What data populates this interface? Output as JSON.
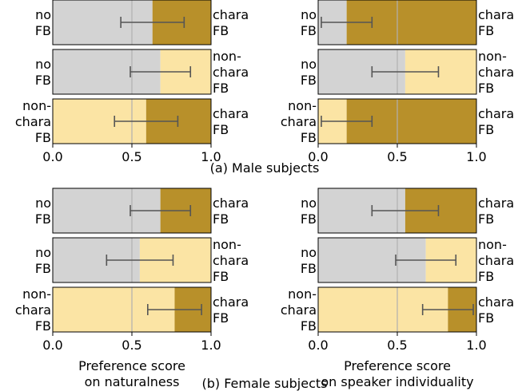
{
  "colors": {
    "gray": "#d3d3d3",
    "light": "#fbe4a4",
    "dark": "#b8902a",
    "midline": "#b0b0b0",
    "errorbar": "#555555"
  },
  "captions": {
    "male": "(a) Male subjects",
    "female": "(b) Female subjects"
  },
  "chart_data": [
    {
      "type": "bar",
      "group": "(a) Male subjects",
      "xlabel": [],
      "xlim": [
        0,
        1
      ],
      "ticks": [
        "0.0",
        "0.5",
        "1.0"
      ],
      "rows": [
        {
          "left": [
            "no",
            "FB"
          ],
          "right": [
            "chara",
            "FB"
          ],
          "left_color": "gray",
          "right_color": "dark",
          "value": 0.63,
          "err": [
            0.43,
            0.83
          ]
        },
        {
          "left": [
            "no",
            "FB"
          ],
          "right": [
            "non-",
            "chara",
            "FB"
          ],
          "left_color": "gray",
          "right_color": "light",
          "value": 0.68,
          "err": [
            0.49,
            0.87
          ]
        },
        {
          "left": [
            "non-",
            "chara",
            "FB"
          ],
          "right": [
            "chara",
            "FB"
          ],
          "left_color": "light",
          "right_color": "dark",
          "value": 0.59,
          "err": [
            0.39,
            0.79
          ]
        }
      ]
    },
    {
      "type": "bar",
      "group": "(a) Male subjects",
      "xlabel": [],
      "xlim": [
        0,
        1
      ],
      "ticks": [
        "0.0",
        "0.5",
        "1.0"
      ],
      "rows": [
        {
          "left": [
            "no",
            "FB"
          ],
          "right": [
            "chara",
            "FB"
          ],
          "left_color": "gray",
          "right_color": "dark",
          "value": 0.18,
          "err": [
            0.02,
            0.34
          ]
        },
        {
          "left": [
            "no",
            "FB"
          ],
          "right": [
            "non-",
            "chara",
            "FB"
          ],
          "left_color": "gray",
          "right_color": "light",
          "value": 0.55,
          "err": [
            0.34,
            0.76
          ]
        },
        {
          "left": [
            "non-",
            "chara",
            "FB"
          ],
          "right": [
            "chara",
            "FB"
          ],
          "left_color": "light",
          "right_color": "dark",
          "value": 0.18,
          "err": [
            0.02,
            0.34
          ]
        }
      ]
    },
    {
      "type": "bar",
      "group": "(b) Female subjects",
      "xlabel": [
        "Preference score",
        "on naturalness"
      ],
      "xlim": [
        0,
        1
      ],
      "ticks": [
        "0.0",
        "0.5",
        "1.0"
      ],
      "rows": [
        {
          "left": [
            "no",
            "FB"
          ],
          "right": [
            "chara",
            "FB"
          ],
          "left_color": "gray",
          "right_color": "dark",
          "value": 0.68,
          "err": [
            0.49,
            0.87
          ]
        },
        {
          "left": [
            "no",
            "FB"
          ],
          "right": [
            "non-",
            "chara",
            "FB"
          ],
          "left_color": "gray",
          "right_color": "light",
          "value": 0.55,
          "err": [
            0.34,
            0.76
          ]
        },
        {
          "left": [
            "non-",
            "chara",
            "FB"
          ],
          "right": [
            "chara",
            "FB"
          ],
          "left_color": "light",
          "right_color": "dark",
          "value": 0.77,
          "err": [
            0.6,
            0.94
          ]
        }
      ]
    },
    {
      "type": "bar",
      "group": "(b) Female subjects",
      "xlabel": [
        "Preference score",
        "on speaker individuality"
      ],
      "xlim": [
        0,
        1
      ],
      "ticks": [
        "0.0",
        "0.5",
        "1.0"
      ],
      "rows": [
        {
          "left": [
            "no",
            "FB"
          ],
          "right": [
            "chara",
            "FB"
          ],
          "left_color": "gray",
          "right_color": "dark",
          "value": 0.55,
          "err": [
            0.34,
            0.76
          ]
        },
        {
          "left": [
            "no",
            "FB"
          ],
          "right": [
            "non-",
            "chara",
            "FB"
          ],
          "left_color": "gray",
          "right_color": "light",
          "value": 0.68,
          "err": [
            0.49,
            0.87
          ]
        },
        {
          "left": [
            "non-",
            "chara",
            "FB"
          ],
          "right": [
            "chara",
            "FB"
          ],
          "left_color": "light",
          "right_color": "dark",
          "value": 0.82,
          "err": [
            0.66,
            0.98
          ]
        }
      ]
    }
  ]
}
